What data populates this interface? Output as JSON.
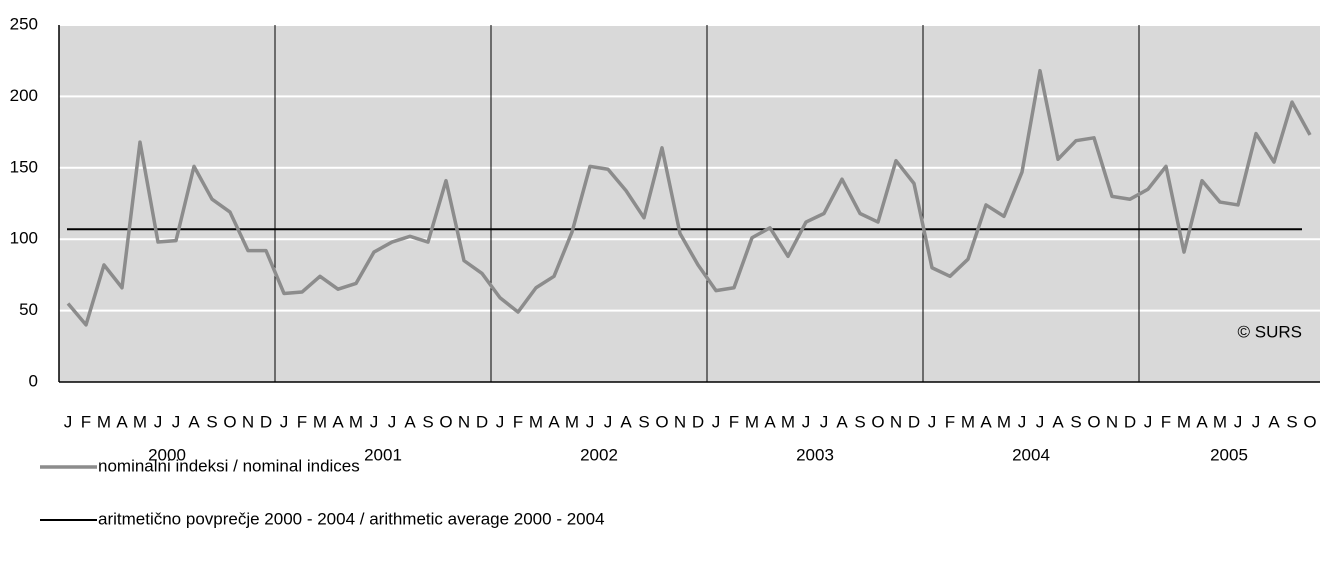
{
  "chart_data": {
    "type": "line",
    "categories": [
      "J",
      "F",
      "M",
      "A",
      "M",
      "J",
      "J",
      "A",
      "S",
      "O",
      "N",
      "D",
      "J",
      "F",
      "M",
      "A",
      "M",
      "J",
      "J",
      "A",
      "S",
      "O",
      "N",
      "D",
      "J",
      "F",
      "M",
      "A",
      "M",
      "J",
      "J",
      "A",
      "S",
      "O",
      "N",
      "D",
      "J",
      "F",
      "M",
      "A",
      "M",
      "J",
      "J",
      "A",
      "S",
      "O",
      "N",
      "D",
      "J",
      "F",
      "M",
      "A",
      "M",
      "J",
      "J",
      "A",
      "S",
      "O",
      "N",
      "D",
      "J",
      "F",
      "M",
      "A",
      "M",
      "J",
      "J",
      "A",
      "S",
      "O"
    ],
    "years": [
      "2000",
      "2001",
      "2002",
      "2003",
      "2004",
      "2005"
    ],
    "series": [
      {
        "name": "nominalni indeksi / nominal indices",
        "color": "#8c8c8c",
        "values": [
          55,
          40,
          82,
          66,
          168,
          98,
          99,
          151,
          128,
          119,
          92,
          92,
          62,
          63,
          74,
          65,
          69,
          91,
          98,
          102,
          98,
          141,
          85,
          76,
          59,
          49,
          66,
          74,
          105,
          151,
          149,
          134,
          115,
          164,
          104,
          82,
          64,
          66,
          101,
          108,
          88,
          112,
          118,
          142,
          118,
          112,
          155,
          139,
          80,
          74,
          86,
          124,
          116,
          147,
          218,
          156,
          169,
          171,
          130,
          128,
          135,
          151,
          91,
          141,
          126,
          124,
          174,
          154,
          196,
          173
        ]
      }
    ],
    "reference_lines": [
      {
        "name": "aritmetično povprečje 2000 - 2004 / arithmetic average 2000 - 2004",
        "value": 107,
        "color": "#000000"
      }
    ],
    "annotation": "© SURS",
    "ylim": [
      0,
      250
    ],
    "yticks": [
      0,
      50,
      100,
      150,
      200,
      250
    ],
    "grid": true
  }
}
